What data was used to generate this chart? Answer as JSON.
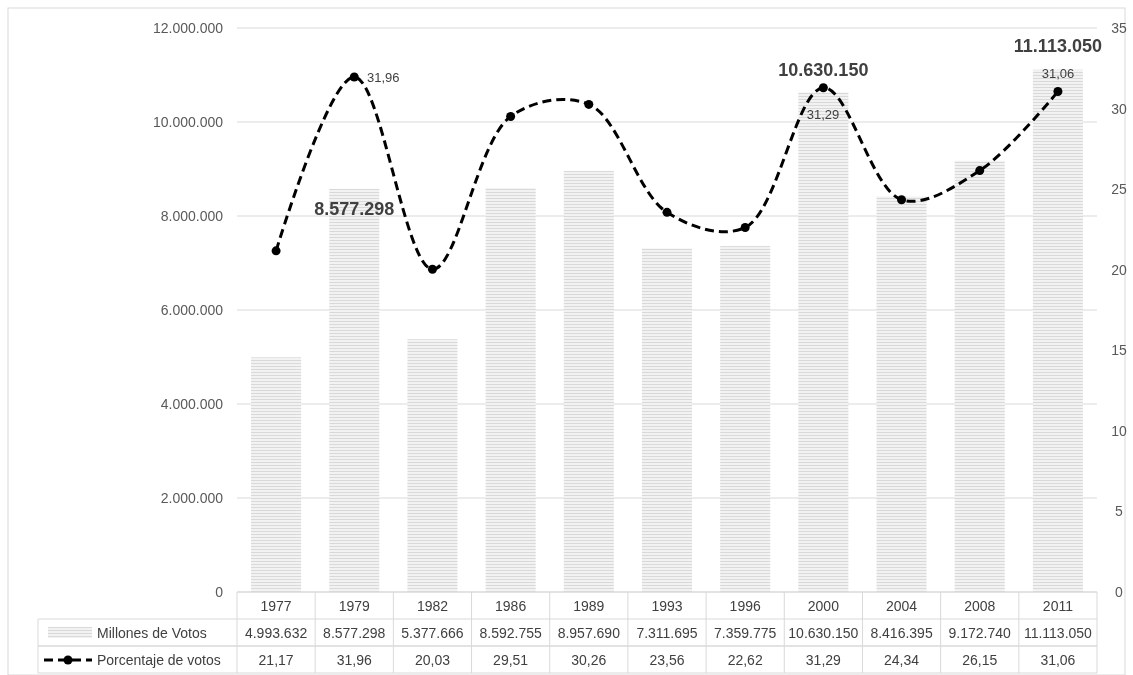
{
  "chart_data": {
    "type": "bar",
    "categories": [
      "1977",
      "1979",
      "1982",
      "1986",
      "1989",
      "1993",
      "1996",
      "2000",
      "2004",
      "2008",
      "2011"
    ],
    "series": [
      {
        "name": "Millones de Votos",
        "color": "#d9d9d9",
        "values": [
          4993632,
          8577298,
          5377666,
          8592755,
          8957690,
          7311695,
          7359775,
          10630150,
          8416395,
          9172740,
          11113050
        ],
        "value_labels": [
          "4.993.632",
          "8.577.298",
          "5.377.666",
          "8.592.755",
          "8.957.690",
          "7.311.695",
          "7.359.775",
          "10.630.150",
          "8.416.395",
          "9.172.740",
          "11.113.050"
        ]
      },
      {
        "name": "Porcentaje de votos",
        "type": "line",
        "axis": "y2",
        "color": "#000000",
        "marker": "circle",
        "line_style": "dashed",
        "values": [
          21.17,
          31.96,
          20.03,
          29.51,
          30.26,
          23.56,
          22.62,
          31.29,
          24.34,
          26.15,
          31.06
        ],
        "value_labels": [
          "21,17",
          "31,96",
          "20,03",
          "29,51",
          "30,26",
          "23,56",
          "22,62",
          "31,29",
          "24,34",
          "26,15",
          "31,06"
        ]
      }
    ],
    "ylim": [
      0,
      12000000
    ],
    "yticks": [
      {
        "value": 0,
        "label": "0"
      },
      {
        "value": 2000000,
        "label": "2.000.000"
      },
      {
        "value": 4000000,
        "label": "4.000.000"
      },
      {
        "value": 6000000,
        "label": "6.000.000"
      },
      {
        "value": 8000000,
        "label": "8.000.000"
      },
      {
        "value": 10000000,
        "label": "10.000.000"
      },
      {
        "value": 12000000,
        "label": "12.000.000"
      }
    ],
    "y2lim": [
      0,
      35
    ],
    "y2ticks": [
      0,
      5,
      10,
      15,
      20,
      25,
      30,
      35
    ],
    "grid": "y",
    "legend": "bottom",
    "annotations": [
      {
        "text": "8.577.298",
        "x": "1979",
        "y": 8577298
      },
      {
        "text": "10.630.150",
        "x": "2000",
        "y": 10630150
      },
      {
        "text": "11.113.050",
        "x": "2011",
        "y": 11113050
      },
      "31,96",
      "31,29",
      "31,06"
    ]
  }
}
